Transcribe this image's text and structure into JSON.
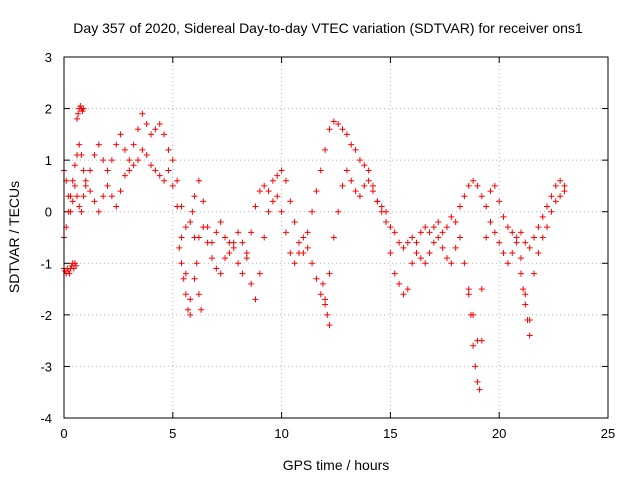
{
  "chart_data": {
    "type": "scatter",
    "title": "Day 357 of 2020, Sidereal Day-to-day VTEC variation (SDTVAR) for receiver ons1",
    "xlabel": "GPS time / hours",
    "ylabel": "SDTVAR / TECUs",
    "xlim": [
      0,
      25
    ],
    "ylim": [
      -4,
      3
    ],
    "xticks": [
      0,
      5,
      10,
      15,
      20,
      25
    ],
    "yticks": [
      -4,
      -3,
      -2,
      -1,
      0,
      1,
      2,
      3
    ],
    "grid": true,
    "marker": "+",
    "color": "#ff0000",
    "series": [
      {
        "name": "track_a",
        "x": [
          0.0,
          0.1,
          0.2,
          0.3,
          0.4,
          0.5,
          0.6,
          0.7,
          0.8,
          0.9,
          1.0,
          1.2,
          1.4,
          1.6,
          1.8,
          2.0,
          2.2,
          2.4,
          2.6,
          2.8,
          3.0,
          3.2,
          3.4,
          3.6,
          3.8,
          4.0,
          4.2,
          4.4,
          4.6,
          4.8,
          5.0,
          5.2,
          5.4,
          5.6,
          5.8,
          6.0,
          6.2,
          6.4,
          6.6,
          6.8,
          7.0,
          7.2,
          7.4,
          7.6,
          7.8,
          8.0,
          8.2,
          8.4,
          8.6,
          8.8,
          9.0,
          9.2,
          9.4,
          9.6,
          9.8,
          10.0,
          10.2,
          10.4,
          10.6,
          10.8,
          11.0,
          11.2,
          11.4,
          11.6,
          11.8,
          12.0,
          12.2,
          12.4,
          12.6,
          12.8,
          13.0,
          13.2,
          13.4,
          13.6,
          13.8,
          14.0,
          14.2,
          14.4,
          14.6,
          14.8,
          15.0,
          15.2,
          15.4,
          15.6,
          15.8,
          16.0,
          16.2,
          16.4,
          16.6,
          16.8,
          17.0,
          17.2,
          17.4,
          17.6,
          17.8,
          18.0,
          18.2,
          18.4,
          18.6,
          18.8,
          19.0,
          19.2,
          19.4,
          19.6,
          19.8,
          20.0,
          20.2,
          20.4,
          20.6,
          20.8,
          21.0,
          21.2,
          21.4,
          21.6,
          21.8,
          22.0,
          22.2,
          22.4,
          22.6,
          22.8,
          23.0
        ],
        "y": [
          -0.5,
          -0.3,
          0.0,
          0.3,
          0.6,
          0.9,
          1.1,
          1.3,
          1.1,
          0.8,
          0.6,
          0.8,
          1.1,
          1.3,
          1.0,
          0.8,
          1.0,
          1.3,
          1.5,
          1.2,
          1.0,
          1.3,
          1.6,
          1.9,
          1.7,
          1.5,
          1.6,
          1.7,
          1.5,
          1.2,
          1.0,
          0.6,
          0.1,
          -0.3,
          -0.2,
          0.3,
          0.6,
          0.2,
          -0.3,
          -0.6,
          -0.4,
          -0.2,
          -0.5,
          -0.8,
          -0.6,
          -0.4,
          -0.6,
          -0.8,
          -0.4,
          0.1,
          0.4,
          0.5,
          0.4,
          0.6,
          0.7,
          0.8,
          0.6,
          0.2,
          -0.2,
          -0.6,
          -0.8,
          -0.4,
          0.0,
          0.4,
          0.8,
          1.2,
          1.6,
          1.75,
          1.7,
          1.6,
          1.5,
          1.3,
          1.2,
          1.0,
          0.9,
          0.8,
          0.5,
          0.2,
          0.0,
          -0.2,
          -0.3,
          -0.4,
          -0.6,
          -0.7,
          -0.6,
          -0.5,
          -0.6,
          -0.4,
          -0.3,
          -0.4,
          -0.3,
          -0.2,
          -0.4,
          -0.3,
          -0.1,
          -0.2,
          0.1,
          0.3,
          0.5,
          0.6,
          0.5,
          0.3,
          0.1,
          0.4,
          0.5,
          0.2,
          -0.1,
          -0.3,
          -0.4,
          -0.5,
          -0.4,
          -0.6,
          -0.7,
          -0.5,
          -0.3,
          -0.1,
          0.1,
          0.3,
          0.5,
          0.6,
          0.5
        ]
      },
      {
        "name": "track_b",
        "x": [
          0.0,
          0.1,
          0.2,
          0.3,
          0.4,
          0.5,
          0.6,
          0.7,
          0.8,
          0.9,
          1.0,
          1.2,
          1.4,
          1.6,
          1.8,
          2.0,
          2.2,
          2.4,
          2.6,
          2.8,
          3.0,
          3.2,
          3.4,
          3.6,
          3.8,
          4.0,
          4.2,
          4.4,
          4.6,
          4.8,
          5.0,
          5.2,
          5.4,
          5.6,
          5.8,
          6.0,
          6.2,
          6.4,
          6.6,
          6.8,
          7.0,
          7.2,
          7.4,
          7.6,
          7.8,
          8.0,
          8.2,
          8.4,
          8.6,
          8.8,
          9.0,
          9.2,
          9.4,
          9.6,
          9.8,
          10.0,
          10.2,
          10.4,
          10.6,
          10.8,
          11.0,
          11.2,
          11.4,
          11.6,
          11.8,
          12.0,
          12.2,
          12.4,
          12.6,
          12.8,
          13.0,
          13.2,
          13.4,
          13.6,
          13.8,
          14.0,
          14.2,
          14.4,
          14.6,
          14.8,
          15.0,
          15.2,
          15.4,
          15.6,
          15.8,
          16.0,
          16.2,
          16.4,
          16.6,
          16.8,
          17.0,
          17.2,
          17.4,
          17.6,
          17.8,
          18.0,
          18.2,
          18.4,
          18.6,
          18.8,
          19.0,
          19.2,
          19.4,
          19.6,
          19.8,
          20.0,
          20.2,
          20.4,
          20.6,
          20.8,
          21.0,
          21.2,
          21.4,
          21.6,
          21.8,
          22.0,
          22.2,
          22.4,
          22.6,
          22.8,
          23.0
        ],
        "y": [
          0.8,
          0.6,
          0.3,
          0.0,
          0.2,
          0.5,
          0.3,
          0.1,
          0.0,
          0.3,
          0.5,
          0.4,
          0.2,
          0.0,
          0.3,
          0.5,
          0.3,
          0.1,
          0.4,
          0.7,
          0.8,
          0.9,
          1.0,
          1.2,
          1.1,
          0.9,
          0.8,
          0.7,
          0.6,
          0.8,
          0.5,
          0.1,
          -0.5,
          -1.2,
          -1.7,
          -1.3,
          -0.5,
          -0.3,
          -0.6,
          -0.9,
          -1.1,
          -1.2,
          -0.9,
          -0.6,
          -0.7,
          -1.0,
          -1.2,
          -0.9,
          -1.4,
          -1.7,
          -1.2,
          -0.5,
          0.0,
          0.2,
          0.3,
          0.0,
          -0.4,
          -0.8,
          -1.0,
          -0.8,
          -0.5,
          -0.7,
          -1.0,
          -1.3,
          -1.6,
          -1.8,
          -1.2,
          -0.5,
          0.0,
          0.5,
          0.8,
          0.6,
          0.4,
          0.3,
          0.5,
          0.6,
          0.4,
          0.2,
          0.1,
          0.0,
          -0.8,
          -1.2,
          -1.4,
          -1.6,
          -1.5,
          -1.0,
          -0.8,
          -0.9,
          -1.0,
          -0.8,
          -0.6,
          -0.5,
          -0.7,
          -0.9,
          -1.0,
          -0.7,
          -0.5,
          -1.0,
          -1.6,
          -2.0,
          -2.5,
          -1.5,
          -0.5,
          -0.2,
          -0.4,
          -0.6,
          -0.8,
          -1.0,
          -0.8,
          -0.6,
          -0.9,
          -1.6,
          -2.1,
          -1.2,
          -0.8,
          -0.5,
          -0.3,
          0.0,
          0.2,
          0.3,
          0.4
        ]
      },
      {
        "name": "track_c",
        "x": [
          0.0,
          0.05,
          0.1,
          0.15,
          0.2,
          0.25,
          0.3,
          0.35,
          0.4,
          0.45,
          0.5,
          0.55,
          0.6,
          0.65,
          0.7,
          0.75,
          0.8,
          0.85,
          0.9
        ],
        "y": [
          -1.1,
          -1.15,
          -1.2,
          -1.1,
          -1.15,
          -1.2,
          -1.1,
          -1.05,
          -1.0,
          -1.1,
          -1.0,
          -1.05,
          1.8,
          1.9,
          2.0,
          2.05,
          2.0,
          1.95,
          2.0
        ]
      },
      {
        "name": "track_d",
        "x": [
          5.3,
          5.4,
          5.5,
          5.6,
          5.7,
          5.8,
          5.9,
          6.0,
          6.1,
          6.2,
          6.3,
          11.9,
          12.0,
          12.1,
          12.2,
          18.6,
          18.7,
          18.8,
          18.9,
          19.0,
          19.1,
          19.2,
          21.0,
          21.1,
          21.2,
          21.3,
          21.4
        ],
        "y": [
          -0.7,
          -1.0,
          -1.3,
          -1.6,
          -1.9,
          -2.0,
          0.0,
          -0.5,
          -1.0,
          -1.6,
          -1.9,
          -1.4,
          -1.7,
          -2.0,
          -2.2,
          -1.5,
          -2.0,
          -2.6,
          -3.0,
          -3.3,
          -3.45,
          -2.5,
          -1.2,
          -1.5,
          -1.8,
          -2.1,
          -2.4
        ]
      }
    ]
  }
}
